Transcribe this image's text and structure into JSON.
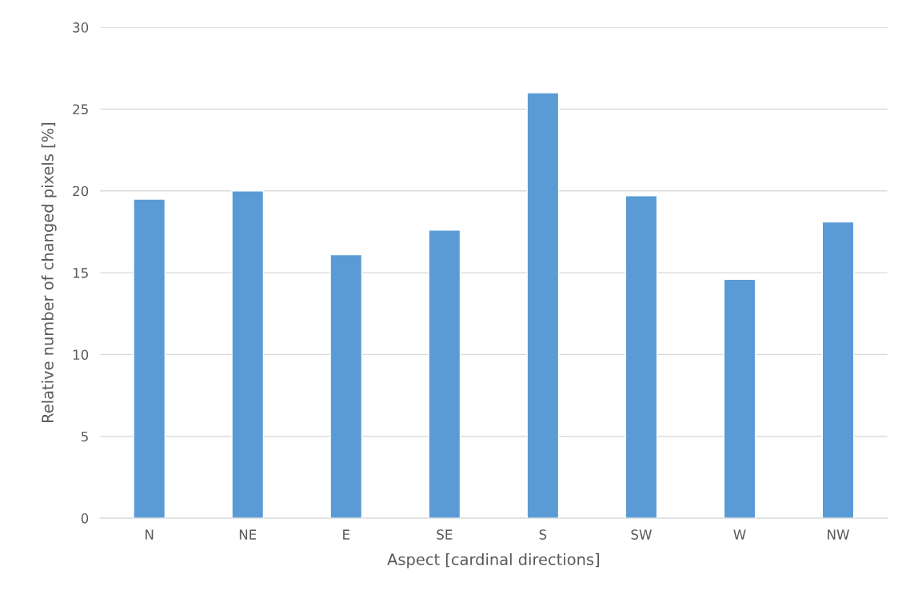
{
  "chart_data": {
    "type": "bar",
    "xlabel": "Aspect [cardinal directions]",
    "ylabel": "Relative number of changed pixels [%]",
    "categories": [
      "N",
      "NE",
      "E",
      "SE",
      "S",
      "SW",
      "W",
      "NW"
    ],
    "values": [
      19.5,
      20.0,
      16.1,
      17.6,
      26.0,
      19.7,
      14.6,
      18.1
    ],
    "color": "#5b9bd5",
    "ylim": [
      0,
      30
    ],
    "yticks": [
      0,
      5,
      10,
      15,
      20,
      25,
      30
    ],
    "grid": "y"
  }
}
